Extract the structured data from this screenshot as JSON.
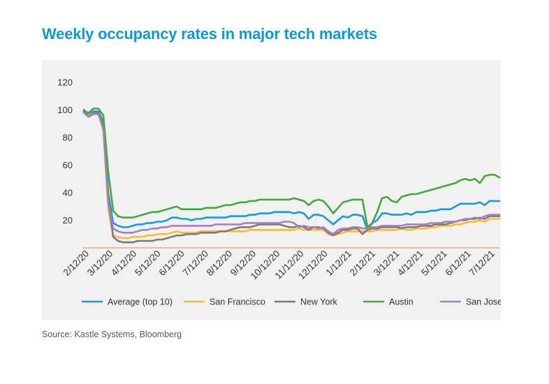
{
  "title": "Weekly occupancy rates in major tech markets",
  "source": "Source: Kastle Systems, Bloomberg",
  "chart_data": {
    "type": "line",
    "title": "Weekly occupancy rates in major tech markets",
    "xlabel": "",
    "ylabel": "",
    "ylim": [
      0,
      120
    ],
    "yticks": [
      20,
      40,
      60,
      80,
      100,
      120
    ],
    "xticks": [
      "2/12/20",
      "3/12/20",
      "4/12/20",
      "5/12/20",
      "6/12/20",
      "7/12/20",
      "8/12/20",
      "9/12/20",
      "10/12/20",
      "11/12/20",
      "12/12/20",
      "1/12/21",
      "2/12/21",
      "3/12/21",
      "4/12/21",
      "5/12/21",
      "6/12/21",
      "7/12/21"
    ],
    "grid": false,
    "legend_position": "bottom",
    "x_start": "2020-02-12",
    "x_step_days": 7,
    "series": [
      {
        "name": "Average (top 10)",
        "color": "#1a9ad6",
        "values": [
          100,
          97,
          99,
          99,
          91,
          40,
          18,
          16,
          15,
          15,
          16,
          17,
          17,
          18,
          18,
          19,
          19,
          20,
          22,
          22,
          21,
          21,
          20,
          21,
          21,
          22,
          22,
          22,
          22,
          22,
          23,
          23,
          23,
          23,
          24,
          24,
          25,
          25,
          25,
          26,
          26,
          26,
          26,
          25,
          26,
          25,
          21,
          24,
          24,
          23,
          20,
          17,
          20,
          23,
          22,
          24,
          24,
          23,
          13,
          18,
          20,
          25,
          25,
          24,
          24,
          24,
          25,
          24,
          26,
          26,
          26,
          27,
          27,
          28,
          28,
          28,
          30,
          32,
          32,
          32,
          32,
          33,
          31,
          34,
          34,
          34
        ]
      },
      {
        "name": "San Francisco",
        "color": "#f6bd34",
        "values": [
          98,
          96,
          98,
          97,
          85,
          28,
          9,
          8,
          7,
          7,
          8,
          8,
          8,
          9,
          9,
          10,
          10,
          10,
          11,
          12,
          11,
          11,
          11,
          11,
          12,
          12,
          12,
          12,
          12,
          12,
          12,
          12,
          12,
          12,
          13,
          13,
          13,
          13,
          13,
          13,
          13,
          13,
          13,
          13,
          14,
          13,
          13,
          13,
          13,
          13,
          10,
          9,
          10,
          11,
          12,
          12,
          12,
          12,
          12,
          12,
          13,
          13,
          13,
          13,
          13,
          14,
          13,
          13,
          14,
          14,
          14,
          15,
          15,
          16,
          16,
          16,
          17,
          17,
          18,
          19,
          19,
          20,
          19,
          21,
          21,
          21
        ]
      },
      {
        "name": "New York",
        "color": "#7a7a7a",
        "values": [
          99,
          95,
          98,
          98,
          88,
          35,
          8,
          5,
          4,
          4,
          4,
          5,
          5,
          5,
          5,
          6,
          6,
          7,
          8,
          9,
          9,
          10,
          10,
          10,
          11,
          11,
          11,
          11,
          12,
          12,
          13,
          14,
          15,
          15,
          15,
          16,
          17,
          17,
          17,
          17,
          17,
          16,
          15,
          15,
          16,
          15,
          13,
          15,
          15,
          14,
          11,
          9,
          11,
          13,
          13,
          14,
          14,
          10,
          13,
          14,
          14,
          15,
          15,
          15,
          15,
          14,
          15,
          15,
          15,
          16,
          16,
          16,
          17,
          17,
          17,
          18,
          19,
          20,
          20,
          21,
          21,
          22,
          21,
          23,
          23,
          23
        ]
      },
      {
        "name": "Austin",
        "color": "#43a93b",
        "values": [
          99,
          98,
          101,
          101,
          96,
          55,
          27,
          23,
          22,
          22,
          22,
          23,
          24,
          25,
          26,
          26,
          27,
          28,
          29,
          30,
          28,
          28,
          28,
          28,
          28,
          29,
          29,
          29,
          30,
          31,
          31,
          32,
          33,
          33,
          34,
          34,
          35,
          35,
          35,
          35,
          35,
          35,
          35,
          36,
          35,
          34,
          31,
          34,
          35,
          34,
          30,
          25,
          29,
          33,
          34,
          35,
          35,
          35,
          15,
          18,
          26,
          36,
          37,
          34,
          33,
          37,
          38,
          39,
          39,
          40,
          41,
          42,
          43,
          44,
          45,
          46,
          47,
          49,
          50,
          49,
          50,
          47,
          52,
          53,
          53,
          51
        ]
      },
      {
        "name": "San Jose",
        "color": "#a77fbf",
        "values": [
          98,
          95,
          97,
          97,
          86,
          33,
          14,
          12,
          11,
          11,
          11,
          12,
          13,
          13,
          14,
          14,
          15,
          15,
          16,
          16,
          16,
          16,
          16,
          16,
          16,
          16,
          16,
          17,
          17,
          17,
          17,
          17,
          17,
          18,
          18,
          18,
          18,
          18,
          18,
          18,
          18,
          19,
          19,
          18,
          15,
          16,
          15,
          15,
          14,
          15,
          12,
          10,
          13,
          14,
          14,
          15,
          15,
          14,
          14,
          15,
          15,
          16,
          16,
          16,
          16,
          16,
          17,
          17,
          17,
          17,
          17,
          18,
          18,
          18,
          19,
          19,
          19,
          20,
          21,
          21,
          22,
          21,
          23,
          24,
          24,
          24
        ]
      }
    ]
  }
}
